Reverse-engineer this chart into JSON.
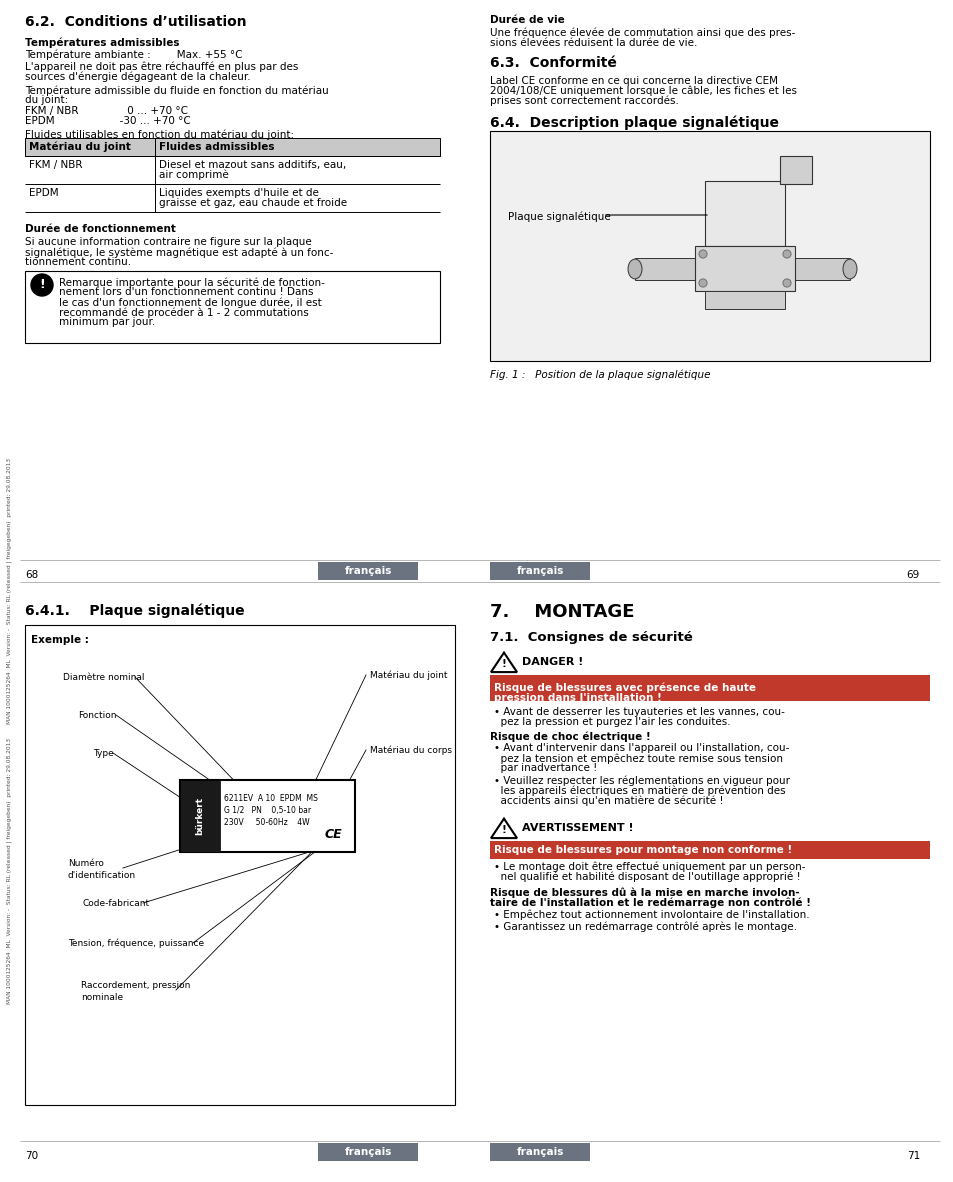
{
  "bg_color": "#ffffff",
  "sidebar_text": "MAN 1000125264  ML  Version: -  Status: RL (released | freigegeben)  printed: 29.08.2013",
  "lang_label": "français",
  "section_62_title": "6.2.  Conditions d’utilisation",
  "section_62_sub1": "Températures admissibles",
  "section_62_sub2": "Durée de fonctionnement",
  "table_header1": "Matériau du joint",
  "table_header2": "Fluides admissibles",
  "section_dur_vie_title": "Durée de vie",
  "section_63_title": "6.3.  Conformité",
  "section_64_title": "6.4.  Description plaque signalétique",
  "fig_caption": "Fig. 1 :   Position de la plaque signalétique",
  "fig_label": "Plaque signalétique",
  "section_641_title": "6.4.1.    Plaque signalétique",
  "example_label": "Exemple :",
  "burkert_line1": "6211EV  A 10  EPDM  MS",
  "burkert_line2": "G 1/2   PN    0,5-10 bar",
  "burkert_line3": "230V     50-60Hz    4W",
  "section_7_title": "7.    MONTAGE",
  "section_71_title": "7.1.  Consignes de sécurité",
  "danger_label": "DANGER !",
  "warning_label": "AVERTISSEMENT !",
  "footer_left_top": "68",
  "footer_right_top": "69",
  "footer_left_bot": "70",
  "footer_right_bot": "71",
  "grey_bar_color": "#6b7280",
  "danger_red": "#c0392b",
  "table_header_grey": "#c8c8c8",
  "warn_box_bg": "#f8f8f8"
}
